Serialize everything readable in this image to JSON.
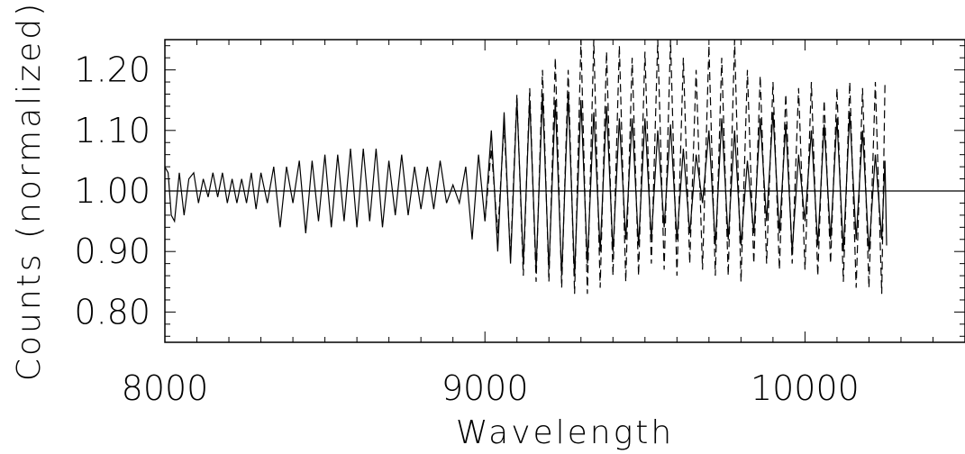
{
  "chart_data": {
    "type": "line",
    "title": "",
    "xlabel": "Wavelength",
    "ylabel": "Counts (normalized)",
    "xlim": [
      8000,
      10500
    ],
    "ylim": [
      0.75,
      1.25
    ],
    "x_ticks": [
      8000,
      9000,
      10000
    ],
    "x_tick_labels": [
      "8000",
      "9000",
      "10000"
    ],
    "y_ticks": [
      0.8,
      0.9,
      1.0,
      1.1,
      1.2
    ],
    "y_tick_labels": [
      "0.80",
      "0.90",
      "1.00",
      "1.10",
      "1.20"
    ],
    "reference_line": 1.0,
    "grid": false,
    "legend": "none",
    "series": [
      {
        "style": "solid",
        "x": [
          8000,
          8010,
          8020,
          8030,
          8045,
          8060,
          8075,
          8090,
          8105,
          8120,
          8135,
          8150,
          8165,
          8180,
          8195,
          8210,
          8225,
          8240,
          8255,
          8270,
          8285,
          8300,
          8320,
          8340,
          8360,
          8380,
          8400,
          8420,
          8440,
          8460,
          8480,
          8500,
          8520,
          8540,
          8560,
          8580,
          8600,
          8620,
          8640,
          8660,
          8680,
          8700,
          8720,
          8740,
          8760,
          8780,
          8800,
          8820,
          8840,
          8860,
          8880,
          8900,
          8920,
          8940,
          8960,
          8980,
          9000,
          9020,
          9040,
          9060,
          9080,
          9100,
          9120,
          9140,
          9160,
          9180,
          9200,
          9220,
          9240,
          9260,
          9280,
          9300,
          9320,
          9340,
          9360,
          9380,
          9400,
          9420,
          9440,
          9460,
          9480,
          9500,
          9520,
          9540,
          9560,
          9580,
          9600,
          9620,
          9640,
          9660,
          9680,
          9700,
          9720,
          9740,
          9760,
          9780,
          9800,
          9820,
          9840,
          9860,
          9880,
          9900,
          9920,
          9940,
          9960,
          9980,
          10000,
          10020,
          10040,
          10060,
          10080,
          10100,
          10120,
          10140,
          10160,
          10180,
          10200,
          10220,
          10240,
          10250,
          10255
        ],
        "y": [
          1.04,
          1.03,
          0.96,
          0.95,
          1.03,
          0.96,
          1.02,
          1.03,
          0.98,
          1.02,
          0.99,
          1.03,
          0.99,
          1.03,
          0.98,
          1.02,
          0.98,
          1.02,
          0.98,
          1.03,
          0.97,
          1.03,
          0.98,
          1.04,
          0.94,
          1.04,
          0.98,
          1.05,
          0.93,
          1.05,
          0.95,
          1.06,
          0.94,
          1.06,
          0.95,
          1.07,
          0.94,
          1.07,
          0.95,
          1.07,
          0.94,
          1.05,
          0.96,
          1.06,
          0.96,
          1.04,
          0.97,
          1.04,
          0.97,
          1.05,
          0.98,
          1.01,
          0.98,
          1.04,
          0.92,
          1.06,
          0.95,
          1.1,
          0.9,
          1.13,
          0.88,
          1.15,
          0.88,
          1.15,
          0.87,
          1.16,
          0.87,
          1.15,
          0.86,
          1.16,
          0.86,
          1.15,
          0.88,
          1.13,
          0.9,
          1.14,
          0.9,
          1.12,
          0.92,
          1.12,
          0.91,
          1.12,
          0.92,
          1.1,
          0.94,
          1.11,
          0.92,
          1.07,
          0.93,
          1.06,
          0.98,
          1.1,
          0.91,
          1.12,
          0.92,
          1.1,
          0.91,
          1.05,
          0.93,
          1.12,
          0.95,
          1.13,
          0.93,
          1.11,
          0.9,
          1.06,
          0.95,
          1.1,
          0.91,
          1.11,
          0.92,
          1.12,
          0.9,
          1.13,
          0.92,
          1.1,
          0.9,
          1.06,
          0.92,
          1.05,
          0.91
        ]
      },
      {
        "style": "dashed",
        "x": [
          9000,
          9020,
          9040,
          9060,
          9080,
          9100,
          9120,
          9140,
          9160,
          9180,
          9200,
          9220,
          9240,
          9260,
          9280,
          9300,
          9320,
          9340,
          9360,
          9380,
          9400,
          9420,
          9440,
          9460,
          9480,
          9500,
          9520,
          9540,
          9560,
          9580,
          9600,
          9620,
          9640,
          9660,
          9680,
          9700,
          9720,
          9740,
          9760,
          9780,
          9800,
          9820,
          9840,
          9860,
          9880,
          9900,
          9920,
          9940,
          9960,
          9980,
          10000,
          10020,
          10040,
          10060,
          10080,
          10100,
          10120,
          10140,
          10160,
          10180,
          10200,
          10220,
          10240,
          10250
        ],
        "y": [
          0.95,
          1.07,
          0.93,
          1.11,
          0.89,
          1.16,
          0.86,
          1.17,
          0.85,
          1.2,
          0.85,
          1.22,
          0.84,
          1.2,
          0.83,
          1.25,
          0.83,
          1.25,
          0.84,
          1.23,
          0.86,
          1.24,
          0.85,
          1.22,
          0.86,
          1.23,
          0.88,
          1.25,
          0.87,
          1.25,
          0.86,
          1.22,
          0.88,
          1.2,
          0.87,
          1.24,
          0.86,
          1.22,
          0.86,
          1.25,
          0.85,
          1.2,
          0.88,
          1.19,
          0.88,
          1.18,
          0.87,
          1.16,
          0.88,
          1.17,
          0.87,
          1.18,
          0.86,
          1.15,
          0.88,
          1.17,
          0.85,
          1.18,
          0.84,
          1.17,
          0.84,
          1.18,
          0.83,
          1.18
        ]
      }
    ]
  }
}
